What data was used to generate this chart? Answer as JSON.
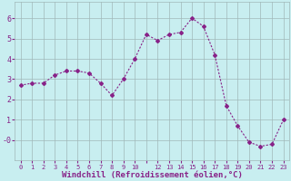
{
  "x": [
    0,
    1,
    2,
    3,
    4,
    5,
    6,
    7,
    8,
    9,
    10,
    11,
    12,
    13,
    14,
    15,
    16,
    17,
    18,
    19,
    20,
    21,
    22,
    23
  ],
  "y": [
    2.7,
    2.8,
    2.8,
    3.2,
    3.4,
    3.4,
    3.3,
    2.8,
    2.2,
    3.0,
    4.0,
    5.2,
    4.9,
    5.2,
    5.3,
    6.0,
    5.6,
    4.2,
    1.7,
    0.7,
    -0.1,
    -0.3,
    -0.2,
    1.0
  ],
  "line_color": "#882288",
  "marker": "D",
  "marker_size": 2.0,
  "linewidth": 0.8,
  "background_color": "#c8eef0",
  "grid_color": "#a0b8b8",
  "xlabel": "Windchill (Refroidissement éolien,°C)",
  "xlabel_fontsize": 6.5,
  "ylim": [
    -1.0,
    6.8
  ],
  "yticks": [
    6,
    5,
    4,
    3,
    2,
    1,
    0
  ],
  "ytick_labels": [
    "6",
    "5",
    "4",
    "3",
    "2",
    "1",
    "-0"
  ],
  "xlim": [
    -0.5,
    23.5
  ],
  "xtick_positions": [
    0,
    1,
    2,
    3,
    4,
    5,
    6,
    7,
    8,
    9,
    10,
    11,
    12,
    13,
    14,
    15,
    16,
    17,
    18,
    19,
    20,
    21,
    22,
    23
  ],
  "xtick_labels_sparse": [
    "0",
    "1",
    "2",
    "3",
    "4",
    "5",
    "6",
    "7",
    "8",
    "9",
    "10",
    "",
    "12",
    "13",
    "14",
    "15",
    "16",
    "17",
    "18",
    "19",
    "20",
    "21",
    "22",
    "23"
  ]
}
